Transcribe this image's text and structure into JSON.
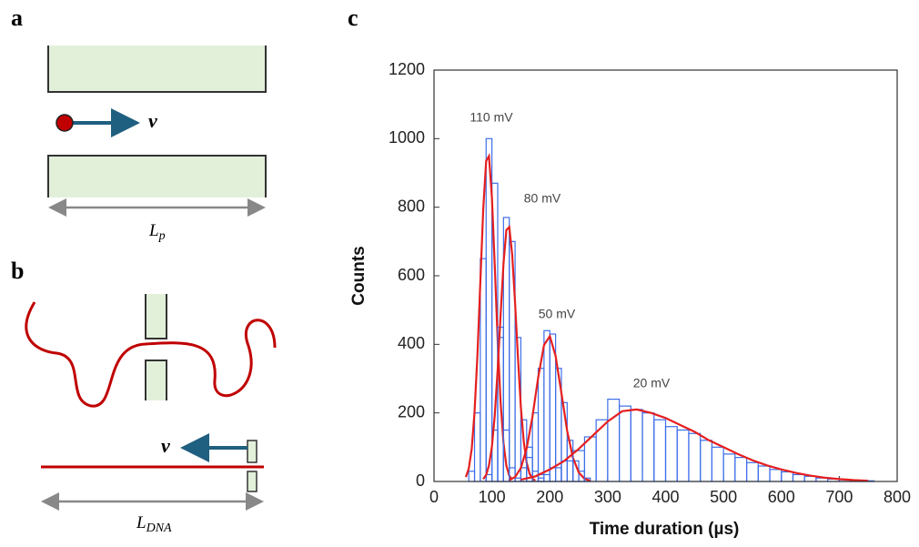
{
  "panel_labels": {
    "a": "a",
    "b": "b",
    "c": "c"
  },
  "panel_a": {
    "velocity": "v",
    "length_label": "L",
    "length_subscript": "p"
  },
  "panel_b": {
    "velocity": "v",
    "length_label": "L",
    "length_subscript": "DNA"
  },
  "chart_data": {
    "type": "histogram",
    "xlabel": "Time duration (µs)",
    "ylabel": "Counts",
    "xlim": [
      0,
      800
    ],
    "xticks": [
      0,
      100,
      200,
      300,
      400,
      500,
      600,
      700,
      800
    ],
    "ylim": [
      0,
      1200
    ],
    "yticks": [
      0,
      200,
      400,
      600,
      800,
      1000,
      1200
    ],
    "series": [
      {
        "name": "110 mV",
        "color": "#3d6ee8",
        "bins": [
          60,
          70,
          80,
          90,
          100,
          110,
          120,
          130,
          140,
          150
        ],
        "values": [
          30,
          200,
          650,
          1000,
          870,
          420,
          150,
          40,
          10
        ],
        "fit": {
          "color": "#e51f1f",
          "x": [
            55,
            60,
            65,
            70,
            75,
            80,
            85,
            90,
            95,
            100,
            105,
            110,
            115,
            120,
            125,
            130,
            135
          ],
          "values": [
            13,
            38,
            94,
            201,
            368,
            582,
            795,
            935,
            949,
            830,
            627,
            408,
            229,
            111,
            46,
            17,
            5
          ]
        }
      },
      {
        "name": "80 mV",
        "color": "#3d6ee8",
        "bins": [
          90,
          100,
          110,
          120,
          130,
          140,
          150,
          160,
          170,
          180,
          190
        ],
        "values": [
          20,
          150,
          450,
          770,
          700,
          420,
          180,
          70,
          30,
          10
        ],
        "fit": {
          "color": "#e51f1f",
          "x": [
            85,
            90,
            95,
            100,
            105,
            110,
            115,
            120,
            125,
            130,
            135,
            140,
            145,
            150,
            155,
            160,
            165,
            170,
            175
          ],
          "values": [
            7,
            19,
            47,
            101,
            194,
            328,
            488,
            637,
            733,
            742,
            662,
            520,
            359,
            218,
            117,
            55,
            23,
            8,
            3
          ]
        }
      },
      {
        "name": "50 mV",
        "color": "#3d6ee8",
        "bins": [
          150,
          160,
          170,
          180,
          190,
          200,
          210,
          220,
          230,
          240,
          250,
          260,
          270
        ],
        "values": [
          40,
          100,
          200,
          330,
          440,
          430,
          330,
          230,
          120,
          60,
          30,
          10
        ],
        "fit": {
          "color": "#e51f1f",
          "x": [
            130,
            140,
            150,
            160,
            170,
            180,
            190,
            200,
            210,
            220,
            230,
            240,
            250,
            260,
            270
          ],
          "values": [
            4,
            13,
            39,
            96,
            189,
            304,
            398,
            424,
            366,
            258,
            148,
            69,
            26,
            8,
            2
          ]
        }
      },
      {
        "name": "20 mV",
        "color": "#3d6ee8",
        "bins": [
          180,
          200,
          220,
          240,
          260,
          280,
          300,
          320,
          340,
          360,
          380,
          400,
          420,
          440,
          460,
          480,
          500,
          520,
          540,
          560,
          580,
          600,
          620,
          640,
          660,
          680,
          700,
          720,
          740,
          760
        ],
        "values": [
          20,
          40,
          60,
          90,
          130,
          180,
          240,
          220,
          210,
          200,
          180,
          160,
          150,
          140,
          120,
          100,
          80,
          70,
          55,
          45,
          35,
          28,
          20,
          15,
          10,
          7,
          5,
          3,
          2
        ],
        "fit": {
          "color": "#e51f1f",
          "x": [
            150,
            175,
            200,
            225,
            250,
            275,
            300,
            325,
            350,
            375,
            400,
            425,
            450,
            475,
            500,
            525,
            550,
            575,
            600,
            625,
            650,
            675,
            700,
            725,
            750
          ],
          "values": [
            5,
            15,
            35,
            60,
            95,
            135,
            175,
            205,
            210,
            200,
            185,
            165,
            145,
            120,
            100,
            80,
            62,
            47,
            35,
            25,
            17,
            11,
            7,
            4,
            2
          ]
        }
      }
    ]
  }
}
